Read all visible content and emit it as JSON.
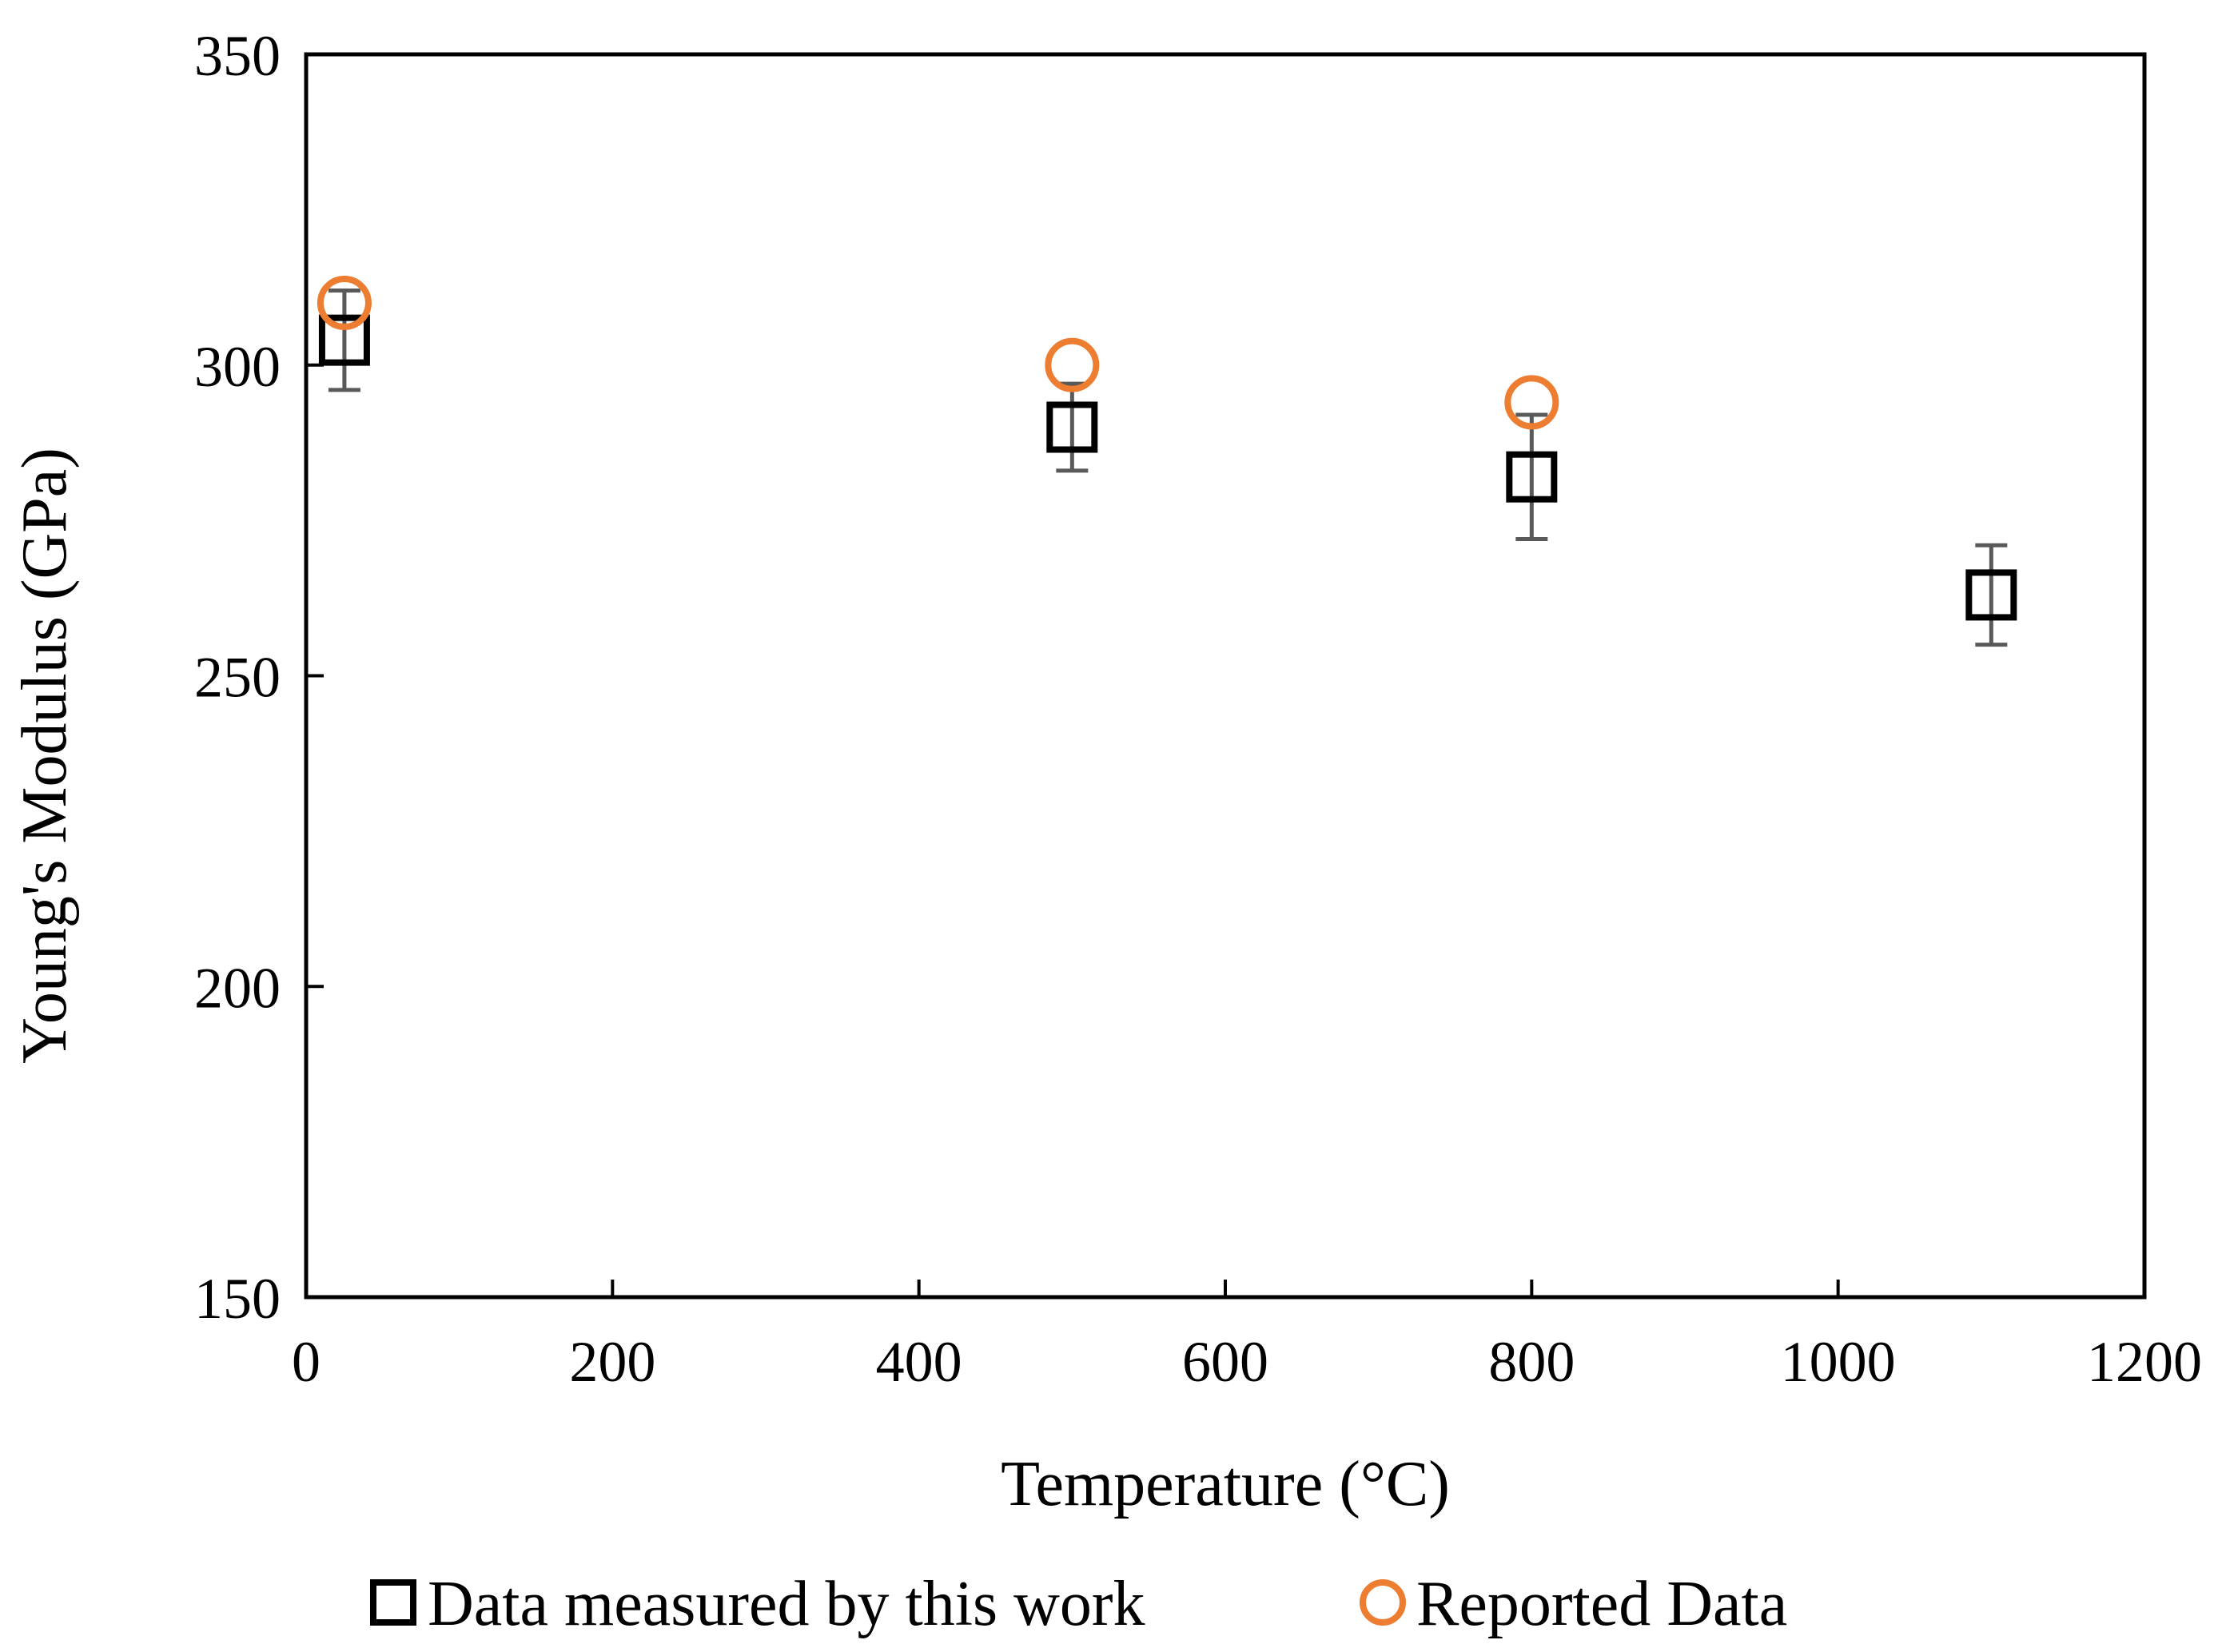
{
  "chart_data": {
    "type": "scatter",
    "xlabel": "Temperature (°C)",
    "ylabel": "Young's Modulus (GPa)",
    "xlim": [
      0,
      1200
    ],
    "ylim": [
      150,
      350
    ],
    "xticks": [
      0,
      200,
      400,
      600,
      800,
      1000,
      1200
    ],
    "yticks": [
      150,
      200,
      250,
      300,
      350
    ],
    "xtick_labels": [
      "0",
      "200",
      "400",
      "600",
      "800",
      "1000",
      "1200"
    ],
    "ytick_labels": [
      "150",
      "200",
      "250",
      "300",
      "350"
    ],
    "grid": false,
    "legend_position": "bottom",
    "series": [
      {
        "name": "Data measured by this work",
        "marker": "square",
        "color": "#000000",
        "points": [
          {
            "x": 25,
            "y": 304,
            "err_low": 8,
            "err_high": 8
          },
          {
            "x": 500,
            "y": 290,
            "err_low": 7,
            "err_high": 7
          },
          {
            "x": 800,
            "y": 282,
            "err_low": 10,
            "err_high": 10
          },
          {
            "x": 1100,
            "y": 263,
            "err_low": 8,
            "err_high": 8
          }
        ]
      },
      {
        "name": "Reported Data",
        "marker": "circle",
        "color": "#ED7D31",
        "points": [
          {
            "x": 25,
            "y": 310
          },
          {
            "x": 500,
            "y": 300
          },
          {
            "x": 800,
            "y": 294
          }
        ]
      }
    ],
    "error_bar_color": "#595959"
  }
}
